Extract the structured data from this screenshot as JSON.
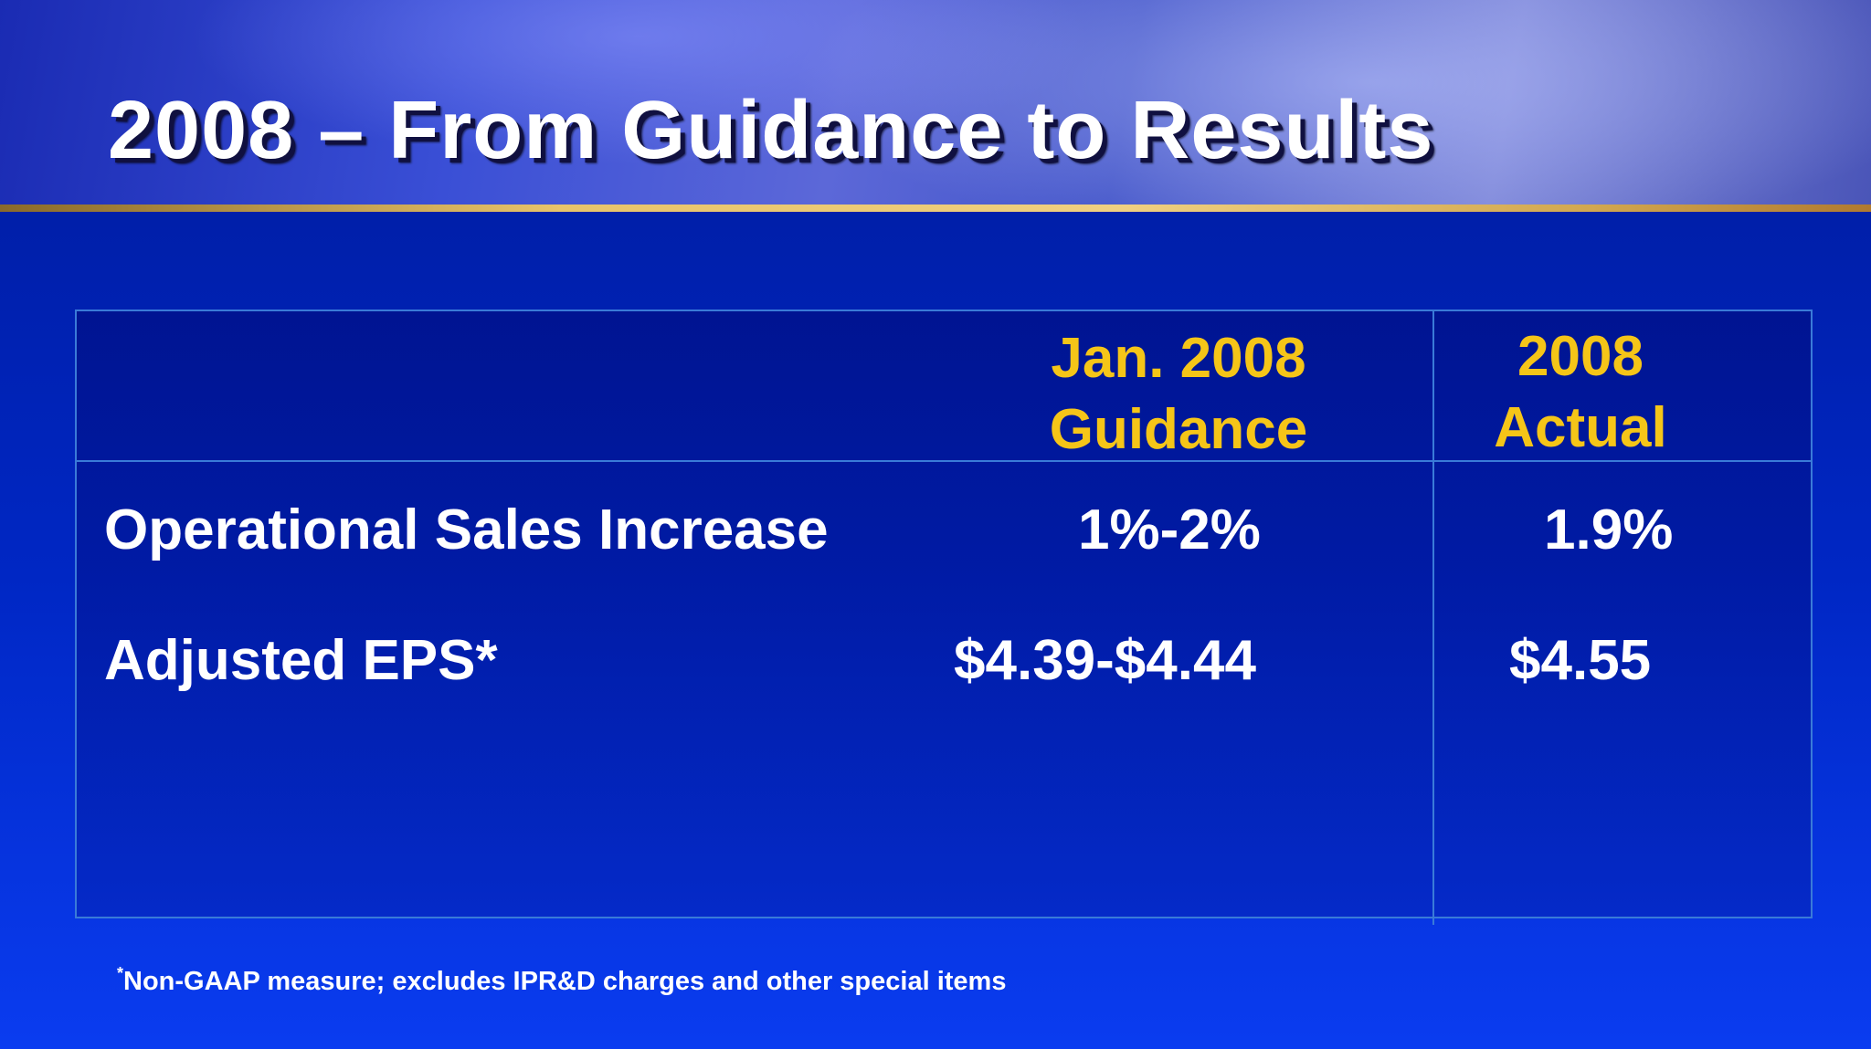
{
  "slide": {
    "title": "2008 – From Guidance to Results"
  },
  "table": {
    "columns": [
      {
        "line1": "Jan. 2008",
        "line2": "Guidance"
      },
      {
        "line1": "2008",
        "line2": "Actual"
      }
    ],
    "rows": [
      {
        "label": "Operational Sales Increase",
        "guidance": "1%-2%",
        "actual": "1.9%"
      },
      {
        "label": "Adjusted EPS*",
        "guidance": "$4.39-$4.44",
        "actual": "$4.55"
      }
    ]
  },
  "footnote": {
    "marker": "*",
    "text": "Non-GAAP measure; excludes IPR&D charges and other special items"
  }
}
